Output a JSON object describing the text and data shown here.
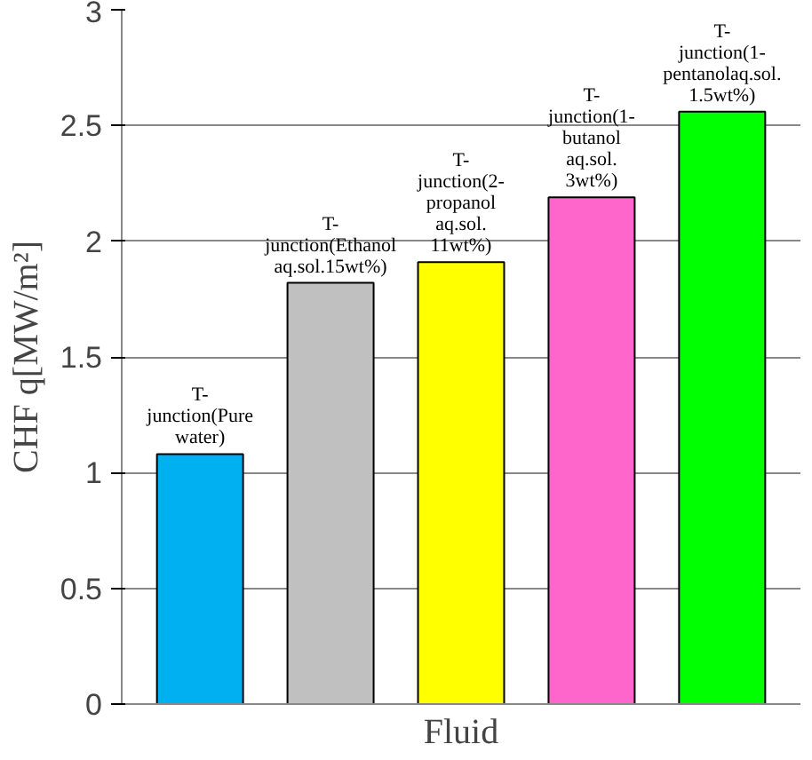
{
  "chart_data": {
    "type": "bar",
    "xlabel": "Fluid",
    "ylabel": "CHF q[MW/m²]",
    "categories": [
      "T-junction(Pure water)",
      "T-junction(Ethanol aq.sol.15wt%)",
      "T-junction(2-propanol aq.sol. 11wt%)",
      "T-junction(1-butanol aq.sol. 3wt%)",
      "T-junction(1-pentanolaq.sol. 1.5wt%)"
    ],
    "values": [
      1.08,
      1.82,
      1.91,
      2.19,
      2.56
    ],
    "colors": [
      "#00b0f0",
      "#c0c0c0",
      "#ffff00",
      "#ff66cc",
      "#00ff00"
    ],
    "ylim": [
      0,
      3
    ],
    "yticks": [
      0,
      0.5,
      1,
      1.5,
      2,
      2.5,
      3
    ],
    "grid": "y"
  }
}
